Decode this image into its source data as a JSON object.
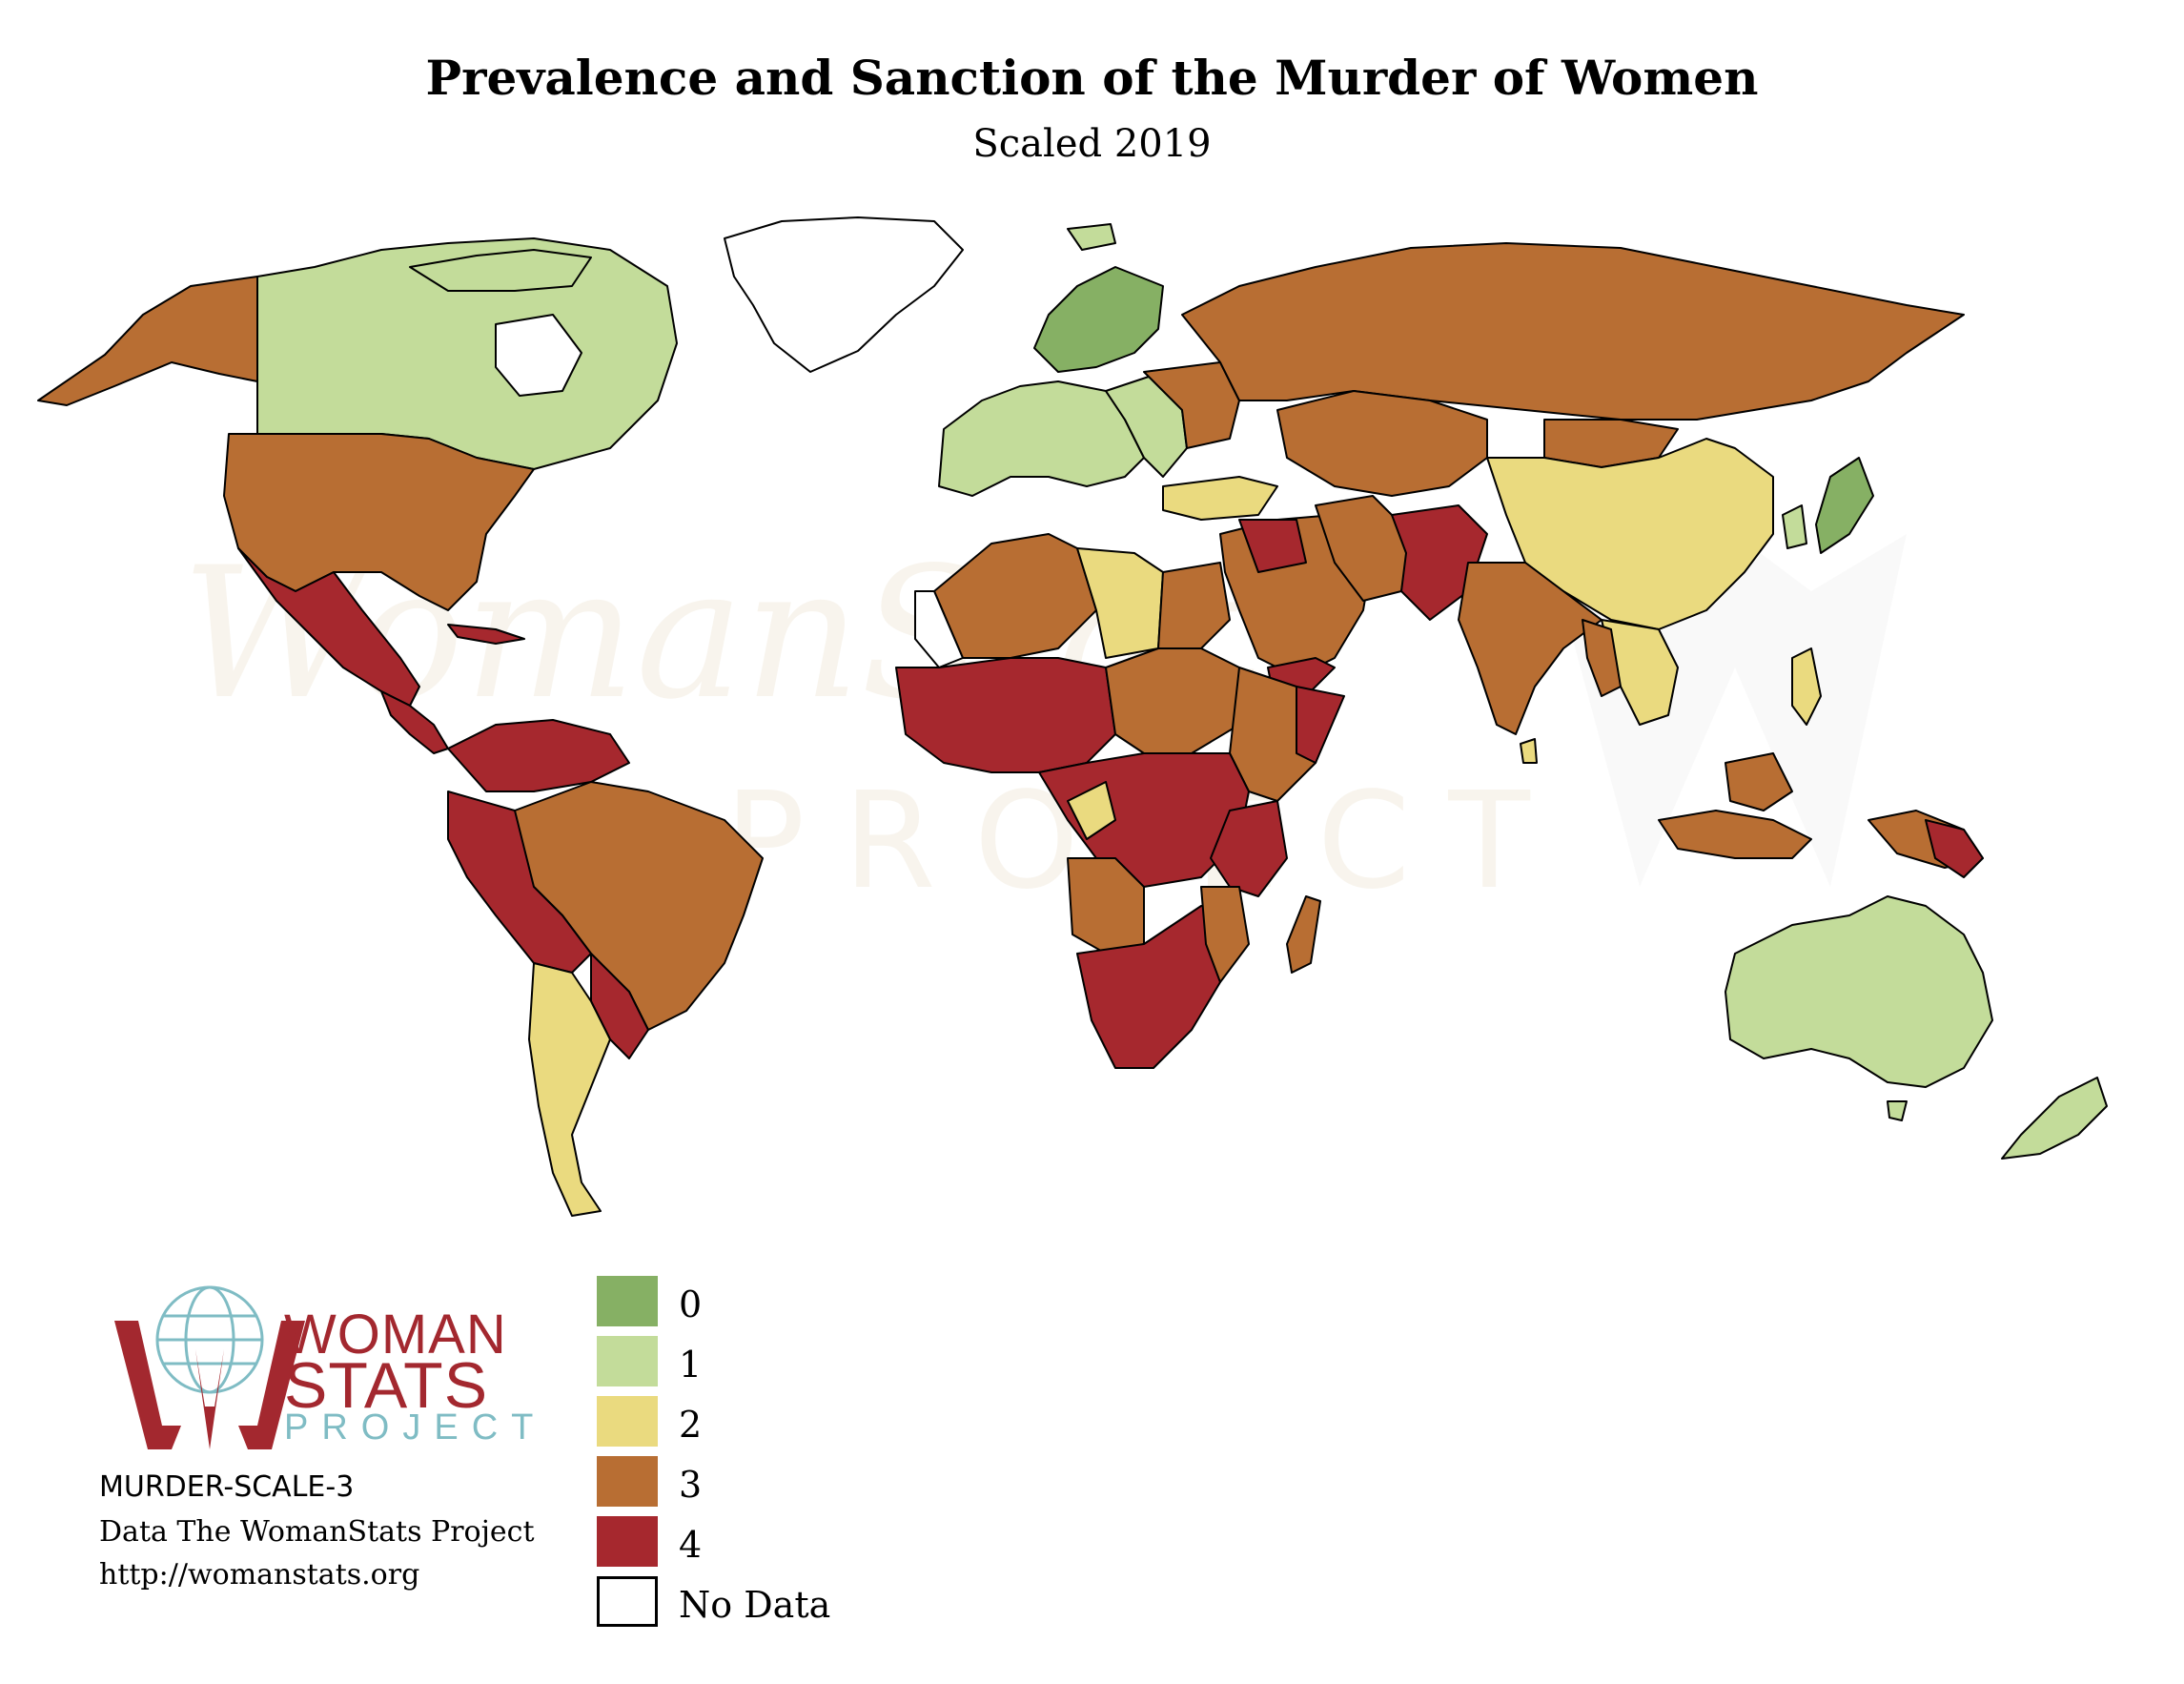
{
  "title": "Prevalence and Sanction of the Murder of Women",
  "subtitle": "Scaled 2019",
  "colors": {
    "scale_0": "#86b064",
    "scale_1": "#c3dc9a",
    "scale_2": "#eada7f",
    "scale_3": "#b86e33",
    "scale_4": "#a6282e",
    "no_data": "#ffffff",
    "brand_red": "#a3282f",
    "brand_teal": "#7fbcc4"
  },
  "legend": [
    {
      "label": "0",
      "color": "#86b064"
    },
    {
      "label": "1",
      "color": "#c3dc9a"
    },
    {
      "label": "2",
      "color": "#eada7f"
    },
    {
      "label": "3",
      "color": "#b86e33"
    },
    {
      "label": "4",
      "color": "#a6282e"
    },
    {
      "label": "No Data",
      "color": "#ffffff"
    }
  ],
  "logo": {
    "line1": "WOMAN",
    "line2": "STATS",
    "line3": "PROJECT"
  },
  "watermark": {
    "line1": "WomanStats",
    "line2": "PROJECT"
  },
  "info": {
    "code": "MURDER-SCALE-3",
    "source": "Data The WomanStats Project",
    "url": "http://womanstats.org"
  }
}
